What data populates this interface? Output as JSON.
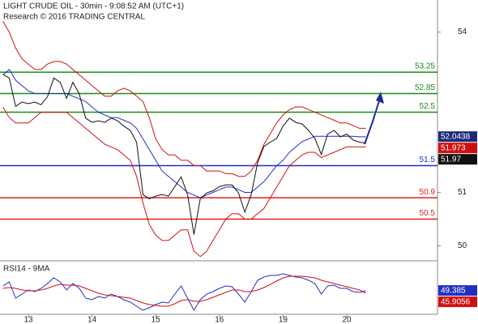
{
  "chart_data": [
    {
      "type": "line",
      "title": "LIGHT CRUDE OIL - 30min - 9:08:52 AM (UTC+1)",
      "subtitle": "Research © 2016 TRADING CENTRAL",
      "ylim": [
        49.75,
        54.6
      ],
      "yticks": [
        50,
        51,
        54
      ],
      "levels": [
        {
          "value": 53.25,
          "color": "#1a8a1a"
        },
        {
          "value": 52.85,
          "color": "#1a8a1a"
        },
        {
          "value": 52.5,
          "color": "#1a8a1a"
        },
        {
          "value": 51.5,
          "color": "#1f2fd0"
        },
        {
          "value": 50.9,
          "color": "#e02020"
        },
        {
          "value": 50.5,
          "color": "#e02020"
        }
      ],
      "series": [
        {
          "color": "#d01010",
          "values": [
            54.2,
            54.0,
            53.7,
            53.5,
            53.4,
            53.3,
            53.3,
            53.4,
            53.45,
            53.45,
            53.4,
            53.3,
            53.2,
            53.1,
            53.0,
            52.9,
            52.8,
            52.8,
            52.9,
            52.95,
            52.9,
            52.8,
            52.7,
            52.4,
            52.0,
            51.8,
            51.7,
            51.7,
            51.6,
            51.6,
            51.5,
            51.5,
            51.4,
            51.4,
            51.4,
            51.35,
            51.35,
            51.3,
            51.3,
            51.4,
            51.6,
            51.9,
            52.1,
            52.3,
            52.45,
            52.55,
            52.6,
            52.6,
            52.55,
            52.5,
            52.45,
            52.4,
            52.35,
            52.3,
            52.3,
            52.25,
            52.2,
            52.2
          ]
        },
        {
          "color": "#d01010",
          "values": [
            52.6,
            52.4,
            52.3,
            52.3,
            52.3,
            52.4,
            52.5,
            52.5,
            52.5,
            52.5,
            52.5,
            52.4,
            52.3,
            52.2,
            52.1,
            52.0,
            51.9,
            51.85,
            51.8,
            51.7,
            51.6,
            51.3,
            50.8,
            50.4,
            50.2,
            50.1,
            50.1,
            50.2,
            50.3,
            50.3,
            49.9,
            49.8,
            49.9,
            50.1,
            50.3,
            50.5,
            50.6,
            50.6,
            50.5,
            50.5,
            50.6,
            50.7,
            50.9,
            51.1,
            51.3,
            51.5,
            51.6,
            51.7,
            51.75,
            51.75,
            51.65,
            51.7,
            51.75,
            51.8,
            51.85,
            51.85,
            51.85,
            51.85
          ]
        },
        {
          "color": "#2030c0",
          "values": [
            53.2,
            53.3,
            53.1,
            53.0,
            52.9,
            52.85,
            52.85,
            52.85,
            52.85,
            52.85,
            52.85,
            52.8,
            52.75,
            52.7,
            52.6,
            52.5,
            52.45,
            52.4,
            52.4,
            52.35,
            52.3,
            52.2,
            52.0,
            51.8,
            51.6,
            51.4,
            51.3,
            51.2,
            51.1,
            51.0,
            50.95,
            50.9,
            50.95,
            51.0,
            51.05,
            51.1,
            51.1,
            51.05,
            51.0,
            51.0,
            51.1,
            51.2,
            51.35,
            51.5,
            51.6,
            51.75,
            51.85,
            51.95,
            52.0,
            52.05,
            52.05,
            52.05,
            52.05,
            52.05,
            52.05,
            52.05,
            52.04,
            52.04
          ]
        },
        {
          "color": "#111111",
          "values": [
            53.21,
            53.14,
            52.61,
            52.69,
            52.66,
            52.69,
            52.64,
            52.79,
            53.14,
            53.06,
            52.76,
            53.06,
            52.84,
            52.39,
            52.31,
            52.34,
            52.31,
            52.39,
            52.34,
            52.24,
            52.16,
            51.94,
            50.96,
            50.88,
            50.93,
            50.96,
            50.93,
            51.11,
            51.29,
            50.96,
            50.21,
            50.88,
            50.99,
            51.03,
            51.11,
            51.14,
            51.14,
            50.99,
            50.63,
            50.96,
            51.56,
            51.86,
            51.94,
            52.01,
            52.24,
            52.39,
            52.31,
            52.28,
            52.16,
            52.01,
            51.71,
            52.09,
            52.16,
            52.04,
            52.09,
            51.98,
            51.94,
            51.92
          ]
        }
      ],
      "price_tags": [
        {
          "value": 52.0438,
          "color": "#1c2a78"
        },
        {
          "value": 51.973,
          "color": "#d01010"
        },
        {
          "value": 51.97,
          "color": "#111111"
        }
      ]
    },
    {
      "type": "line",
      "title": "RSI14 - 9MA",
      "categories": [
        null,
        null,
        null,
        null,
        "13",
        null,
        null,
        null,
        null,
        null,
        null,
        null,
        null,
        null,
        "14",
        null,
        null,
        null,
        null,
        null,
        null,
        null,
        null,
        null,
        "15",
        null,
        null,
        null,
        null,
        null,
        null,
        null,
        null,
        null,
        "16",
        null,
        null,
        null,
        null,
        null,
        null,
        null,
        null,
        null,
        "19",
        null,
        null,
        null,
        null,
        null,
        null,
        null,
        null,
        null,
        "20",
        null,
        null,
        null
      ],
      "ylim": [
        20,
        80
      ],
      "series": [
        {
          "color": "#2030c0",
          "values": [
            55,
            60,
            40,
            45,
            50,
            48,
            52,
            58,
            65,
            60,
            50,
            58,
            52,
            40,
            38,
            42,
            40,
            45,
            42,
            38,
            35,
            30,
            25,
            28,
            32,
            35,
            34,
            45,
            55,
            40,
            25,
            38,
            45,
            48,
            52,
            55,
            54,
            45,
            35,
            48,
            62,
            66,
            68,
            68,
            70,
            68,
            66,
            65,
            62,
            58,
            45,
            55,
            56,
            52,
            52,
            48,
            47,
            49
          ]
        },
        {
          "color": "#d01010",
          "values": [
            52,
            53,
            52,
            50,
            49,
            49,
            50,
            52,
            55,
            57,
            56,
            56,
            55,
            52,
            49,
            46,
            44,
            43,
            42,
            41,
            40,
            37,
            34,
            32,
            31,
            30,
            30,
            33,
            37,
            38,
            36,
            36,
            38,
            41,
            44,
            47,
            50,
            50,
            48,
            48,
            50,
            53,
            57,
            61,
            65,
            67,
            67,
            67,
            66,
            65,
            62,
            60,
            58,
            56,
            54,
            52,
            50,
            46
          ]
        }
      ],
      "price_tags": [
        {
          "value": 49.385,
          "color": "#2030c0"
        },
        {
          "value": 45.9056,
          "color": "#d01010"
        }
      ]
    }
  ]
}
